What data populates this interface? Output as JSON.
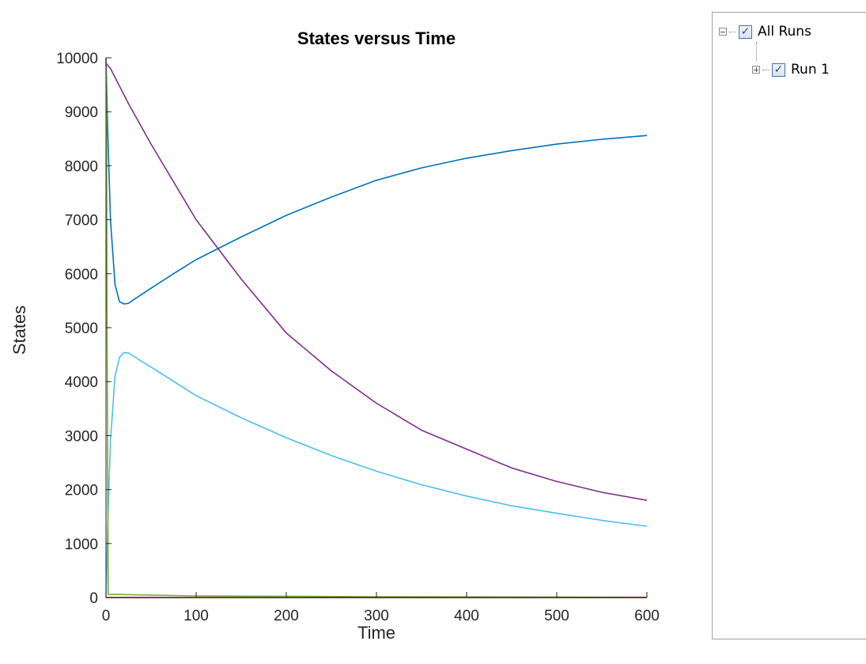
{
  "chart_data": {
    "type": "line",
    "title": "States versus Time",
    "xlabel": "Time",
    "ylabel": "States",
    "xlim": [
      0,
      600
    ],
    "ylim": [
      0,
      10000
    ],
    "xticks": [
      0,
      100,
      200,
      300,
      400,
      500,
      600
    ],
    "yticks": [
      0,
      1000,
      2000,
      3000,
      4000,
      5000,
      6000,
      7000,
      8000,
      9000,
      10000
    ],
    "grid": false,
    "series": [
      {
        "color": "#0072BD",
        "x": [
          0,
          2,
          5,
          10,
          15,
          20,
          25,
          30,
          40,
          50,
          75,
          100,
          150,
          200,
          250,
          300,
          350,
          400,
          450,
          500,
          550,
          600
        ],
        "y": [
          10000,
          8600,
          7000,
          5800,
          5480,
          5440,
          5450,
          5510,
          5620,
          5730,
          6000,
          6260,
          6680,
          7080,
          7420,
          7730,
          7960,
          8140,
          8280,
          8400,
          8490,
          8560
        ]
      },
      {
        "color": "#7E2F8E",
        "x": [
          0,
          5,
          25,
          50,
          100,
          150,
          200,
          250,
          300,
          350,
          400,
          450,
          500,
          550,
          600
        ],
        "y": [
          9900,
          9800,
          9150,
          8400,
          7000,
          5900,
          4900,
          4200,
          3600,
          3100,
          2750,
          2400,
          2150,
          1950,
          1800
        ]
      },
      {
        "color": "#4DBEEE",
        "x": [
          0,
          2,
          5,
          10,
          15,
          20,
          25,
          30,
          40,
          50,
          100,
          150,
          200,
          250,
          300,
          350,
          400,
          450,
          500,
          550,
          600
        ],
        "y": [
          0,
          1400,
          2900,
          4100,
          4450,
          4540,
          4530,
          4480,
          4370,
          4270,
          3740,
          3330,
          2960,
          2630,
          2340,
          2090,
          1880,
          1700,
          1560,
          1430,
          1320
        ]
      },
      {
        "color": "#77AC30",
        "x": [
          0,
          0.6,
          1.2,
          2.5,
          100,
          300,
          600
        ],
        "y": [
          10000,
          9000,
          5000,
          60,
          30,
          15,
          5
        ]
      },
      {
        "color": "#D95319",
        "x": [
          0,
          600
        ],
        "y": [
          0,
          0
        ]
      },
      {
        "color": "#A2142F",
        "x": [
          0,
          600
        ],
        "y": [
          0,
          0
        ]
      }
    ]
  },
  "legend_tree": {
    "root_label": "All Runs",
    "root_expander": "-",
    "root_checked": true,
    "child_label": "Run 1",
    "child_expander": "+",
    "child_checked": true
  }
}
